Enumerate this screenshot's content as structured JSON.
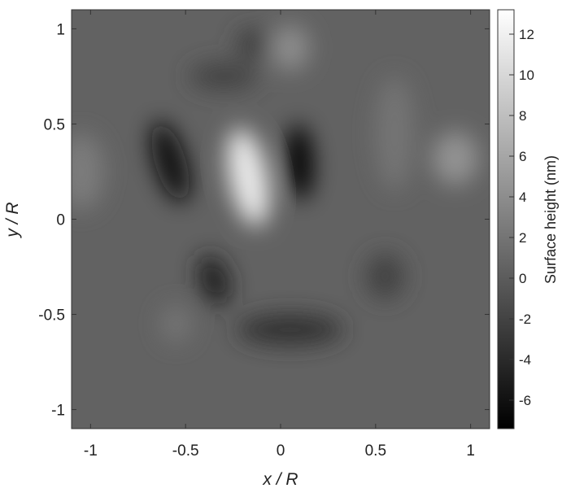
{
  "chart_data": {
    "type": "heatmap",
    "title": "",
    "xlabel": "x / R",
    "ylabel": "y / R",
    "xlim": [
      -1.1,
      1.1
    ],
    "ylim": [
      -1.1,
      1.1
    ],
    "x_ticks": [
      -1,
      -0.5,
      0,
      0.5,
      1
    ],
    "x_tick_labels": [
      "-1",
      "-0.5",
      "0",
      "0.5",
      "1"
    ],
    "y_ticks": [
      1,
      0.5,
      0,
      -0.5,
      -1
    ],
    "y_tick_labels": [
      "1",
      "0.5",
      "0",
      "-0.5",
      "-1"
    ],
    "colormap": "gray",
    "colorbar": {
      "label": "Surface height (nm)",
      "range": [
        -7.4,
        13.2
      ],
      "ticks": [
        12,
        10,
        8,
        6,
        4,
        2,
        0,
        -2,
        -4,
        -6
      ],
      "tick_labels": [
        "12",
        "10",
        "8",
        "6",
        "4",
        "2",
        "0",
        "-2",
        "-4",
        "-6"
      ]
    },
    "background_value": 0.5,
    "features": [
      {
        "x": -0.17,
        "y": 0.22,
        "sx": 0.1,
        "sy": 0.26,
        "rot": -0.2,
        "value": 11.5
      },
      {
        "x": 0.1,
        "y": 0.3,
        "sx": 0.07,
        "sy": 0.2,
        "rot": -0.05,
        "value": -7
      },
      {
        "x": -0.58,
        "y": 0.3,
        "sx": 0.08,
        "sy": 0.22,
        "rot": -0.3,
        "value": -6
      },
      {
        "x": -0.35,
        "y": -0.32,
        "sx": 0.08,
        "sy": 0.14,
        "rot": -0.3,
        "value": -4.5
      },
      {
        "x": 0.05,
        "y": -0.58,
        "sx": 0.28,
        "sy": 0.08,
        "rot": 0.0,
        "value": -3.5
      },
      {
        "x": 0.05,
        "y": 0.9,
        "sx": 0.1,
        "sy": 0.12,
        "rot": 0.0,
        "value": 4
      },
      {
        "x": -0.15,
        "y": 0.92,
        "sx": 0.08,
        "sy": 0.08,
        "rot": 0.0,
        "value": -2.5
      },
      {
        "x": 0.92,
        "y": 0.32,
        "sx": 0.12,
        "sy": 0.14,
        "rot": 0.0,
        "value": 4.5
      },
      {
        "x": -1.05,
        "y": 0.25,
        "sx": 0.12,
        "sy": 0.2,
        "rot": 0.0,
        "value": 2.5
      },
      {
        "x": 0.6,
        "y": 0.45,
        "sx": 0.1,
        "sy": 0.3,
        "rot": 0.0,
        "value": 2.0
      },
      {
        "x": 0.55,
        "y": -0.3,
        "sx": 0.1,
        "sy": 0.12,
        "rot": 0.0,
        "value": -2.0
      },
      {
        "x": -0.55,
        "y": -0.55,
        "sx": 0.08,
        "sy": 0.1,
        "rot": 0.0,
        "value": 2.0
      },
      {
        "x": -0.3,
        "y": 0.75,
        "sx": 0.18,
        "sy": 0.07,
        "rot": 0.0,
        "value": -2.0
      }
    ]
  }
}
